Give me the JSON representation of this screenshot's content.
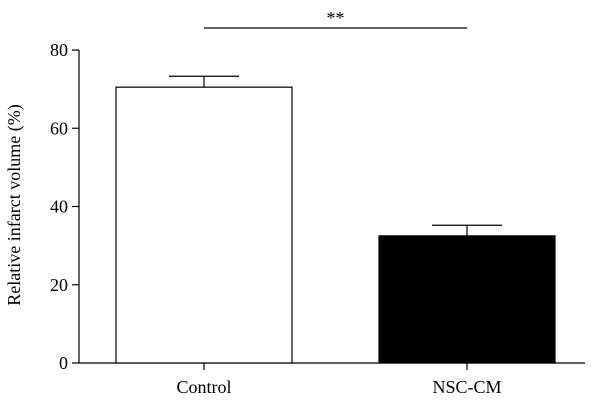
{
  "chart_data": {
    "type": "bar",
    "ylabel": "Relative infarct volume (%)",
    "categories": [
      "Control",
      "NSC-CM"
    ],
    "values": [
      70.5,
      32.5
    ],
    "errors": [
      2.8,
      2.7
    ],
    "bar_colors": [
      "#ffffff",
      "#000000"
    ],
    "ylim": [
      0,
      80
    ],
    "yticks": [
      0,
      20,
      40,
      60,
      80
    ],
    "significance": {
      "between": [
        0,
        1
      ],
      "label": "**"
    },
    "grid": false
  }
}
